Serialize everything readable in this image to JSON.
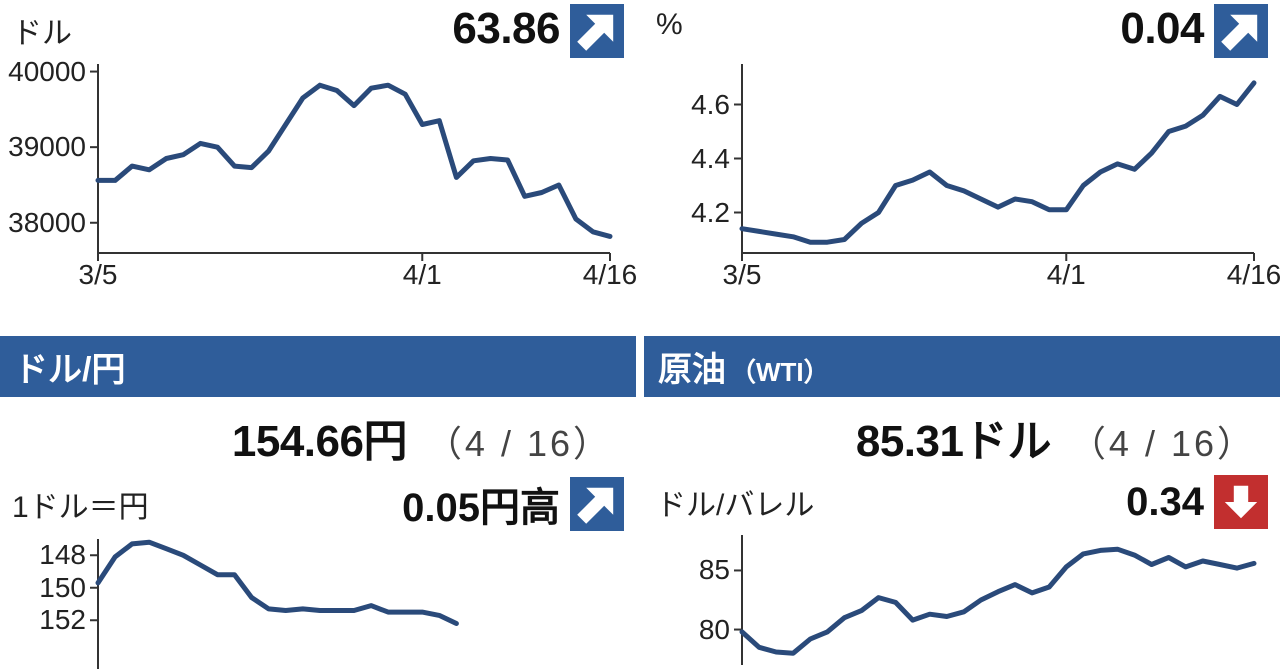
{
  "colors": {
    "line": "#2a4a7a",
    "arrow_up_bg": "#2f5d9a",
    "arrow_down_bg": "#c22f2f",
    "arrow_fg": "#ffffff",
    "titlebar_bg": "#2f5d9a",
    "titlebar_fg": "#ffffff",
    "axis": "#333333",
    "text": "#111111"
  },
  "panels": {
    "top_left": {
      "unit_label": "ドル",
      "change_value": "63.86",
      "arrow": "up",
      "chart": {
        "type": "line",
        "yticks": [
          38000,
          39000,
          40000
        ],
        "ylim": [
          37600,
          40100
        ],
        "xlim": [
          0,
          30
        ],
        "xticks": [
          {
            "x": 0,
            "label": "3/5"
          },
          {
            "x": 19,
            "label": "4/1"
          },
          {
            "x": 30,
            "label": "4/16"
          }
        ],
        "line_width": 5,
        "line_color": "#2a4a7a",
        "data": [
          [
            0,
            38560
          ],
          [
            1,
            38560
          ],
          [
            2,
            38750
          ],
          [
            3,
            38700
          ],
          [
            4,
            38850
          ],
          [
            5,
            38900
          ],
          [
            6,
            39050
          ],
          [
            7,
            39000
          ],
          [
            8,
            38750
          ],
          [
            9,
            38730
          ],
          [
            10,
            38950
          ],
          [
            11,
            39300
          ],
          [
            12,
            39650
          ],
          [
            13,
            39820
          ],
          [
            14,
            39750
          ],
          [
            15,
            39550
          ],
          [
            16,
            39780
          ],
          [
            17,
            39820
          ],
          [
            18,
            39700
          ],
          [
            19,
            39300
          ],
          [
            20,
            39350
          ],
          [
            21,
            38600
          ],
          [
            22,
            38820
          ],
          [
            23,
            38850
          ],
          [
            24,
            38830
          ],
          [
            25,
            38350
          ],
          [
            26,
            38400
          ],
          [
            27,
            38500
          ],
          [
            28,
            38050
          ],
          [
            29,
            37880
          ],
          [
            30,
            37820
          ]
        ]
      }
    },
    "top_right": {
      "unit_label": "%",
      "change_value": "0.04",
      "arrow": "up",
      "chart": {
        "type": "line",
        "yticks": [
          4.2,
          4.4,
          4.6
        ],
        "ylim": [
          4.05,
          4.75
        ],
        "xlim": [
          0,
          30
        ],
        "xticks": [
          {
            "x": 0,
            "label": "3/5"
          },
          {
            "x": 19,
            "label": "4/1"
          },
          {
            "x": 30,
            "label": "4/16"
          }
        ],
        "line_width": 5,
        "line_color": "#2a4a7a",
        "data": [
          [
            0,
            4.14
          ],
          [
            1,
            4.13
          ],
          [
            2,
            4.12
          ],
          [
            3,
            4.11
          ],
          [
            4,
            4.09
          ],
          [
            5,
            4.09
          ],
          [
            6,
            4.1
          ],
          [
            7,
            4.16
          ],
          [
            8,
            4.2
          ],
          [
            9,
            4.3
          ],
          [
            10,
            4.32
          ],
          [
            11,
            4.35
          ],
          [
            12,
            4.3
          ],
          [
            13,
            4.28
          ],
          [
            14,
            4.25
          ],
          [
            15,
            4.22
          ],
          [
            16,
            4.25
          ],
          [
            17,
            4.24
          ],
          [
            18,
            4.21
          ],
          [
            19,
            4.21
          ],
          [
            20,
            4.3
          ],
          [
            21,
            4.35
          ],
          [
            22,
            4.38
          ],
          [
            23,
            4.36
          ],
          [
            24,
            4.42
          ],
          [
            25,
            4.5
          ],
          [
            26,
            4.52
          ],
          [
            27,
            4.56
          ],
          [
            28,
            4.63
          ],
          [
            29,
            4.6
          ],
          [
            30,
            4.68
          ]
        ]
      }
    },
    "bottom_left": {
      "title_main": "ドル/円",
      "title_sub": "",
      "value": "154.66",
      "value_unit": "円",
      "value_date": "（4 / 16）",
      "change_left_label": "1ドル＝円",
      "change_value": "0.05円高",
      "arrow": "up",
      "chart": {
        "type": "line",
        "yticks": [
          148,
          150,
          152
        ],
        "ylim": [
          147,
          155
        ],
        "y_inverted": true,
        "xlim": [
          0,
          30
        ],
        "xticks": [],
        "line_width": 5,
        "line_color": "#2a4a7a",
        "data": [
          [
            0,
            149.7
          ],
          [
            1,
            148.1
          ],
          [
            2,
            147.3
          ],
          [
            3,
            147.2
          ],
          [
            4,
            147.6
          ],
          [
            5,
            148.0
          ],
          [
            6,
            148.6
          ],
          [
            7,
            149.2
          ],
          [
            8,
            149.2
          ],
          [
            9,
            150.6
          ],
          [
            10,
            151.3
          ],
          [
            11,
            151.4
          ],
          [
            12,
            151.3
          ],
          [
            13,
            151.4
          ],
          [
            14,
            151.4
          ],
          [
            15,
            151.4
          ],
          [
            16,
            151.1
          ],
          [
            17,
            151.5
          ],
          [
            18,
            151.5
          ],
          [
            19,
            151.5
          ],
          [
            20,
            151.7
          ],
          [
            21,
            152.2
          ]
        ]
      }
    },
    "bottom_right": {
      "title_main": "原油",
      "title_sub": "（WTI）",
      "value": "85.31",
      "value_unit": "ドル",
      "value_date": "（4 / 16）",
      "change_left_label": "ドル/バレル",
      "change_value": "0.34",
      "arrow": "down",
      "chart": {
        "type": "line",
        "yticks": [
          80,
          85
        ],
        "ylim": [
          77,
          88
        ],
        "xlim": [
          0,
          30
        ],
        "xticks": [],
        "line_width": 5,
        "line_color": "#2a4a7a",
        "data": [
          [
            0,
            79.8
          ],
          [
            1,
            78.5
          ],
          [
            2,
            78.1
          ],
          [
            3,
            78.0
          ],
          [
            4,
            79.2
          ],
          [
            5,
            79.8
          ],
          [
            6,
            81.0
          ],
          [
            7,
            81.6
          ],
          [
            8,
            82.7
          ],
          [
            9,
            82.3
          ],
          [
            10,
            80.8
          ],
          [
            11,
            81.3
          ],
          [
            12,
            81.1
          ],
          [
            13,
            81.5
          ],
          [
            14,
            82.5
          ],
          [
            15,
            83.2
          ],
          [
            16,
            83.8
          ],
          [
            17,
            83.1
          ],
          [
            18,
            83.6
          ],
          [
            19,
            85.3
          ],
          [
            20,
            86.4
          ],
          [
            21,
            86.7
          ],
          [
            22,
            86.8
          ],
          [
            23,
            86.3
          ],
          [
            24,
            85.5
          ],
          [
            25,
            86.1
          ],
          [
            26,
            85.3
          ],
          [
            27,
            85.8
          ],
          [
            28,
            85.5
          ],
          [
            29,
            85.2
          ],
          [
            30,
            85.6
          ]
        ]
      }
    }
  }
}
